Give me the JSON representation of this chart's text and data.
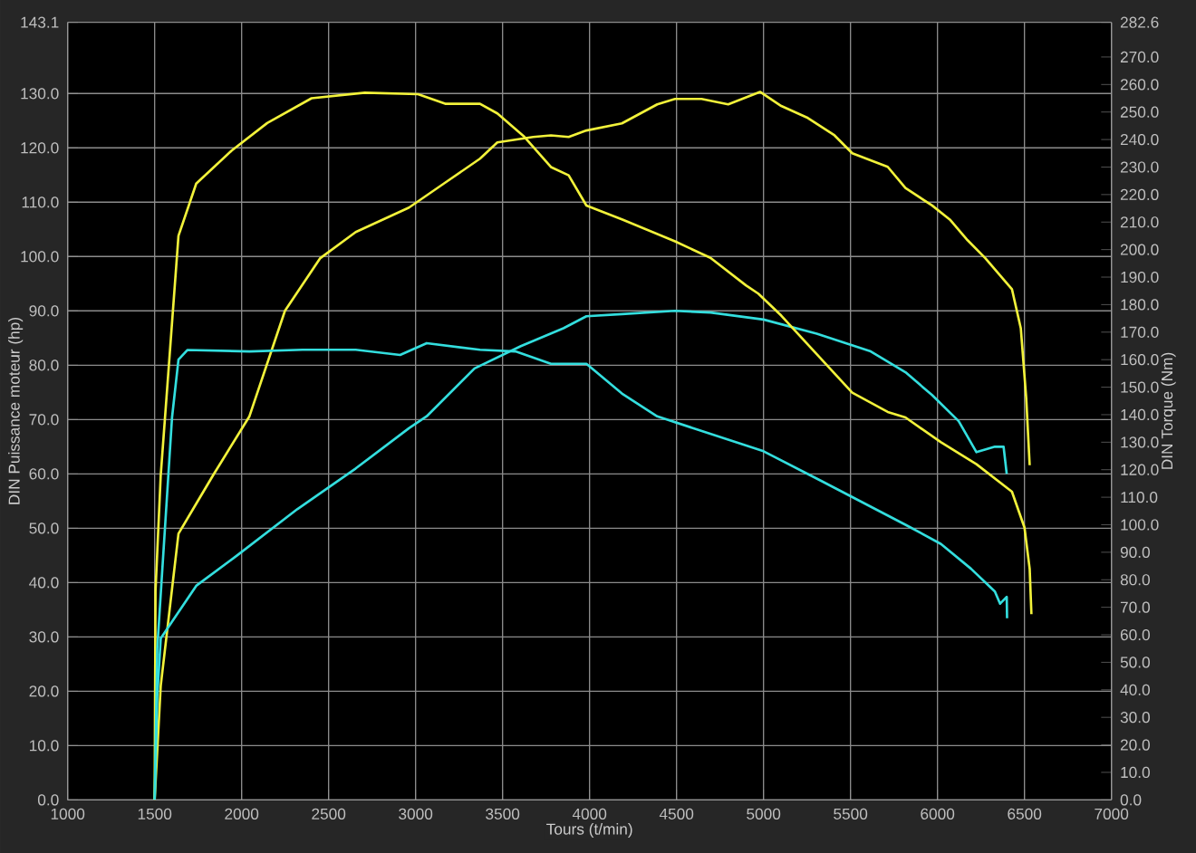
{
  "chart_data": {
    "type": "line",
    "xlabel": "Tours (t/min)",
    "ylabel": "DIN Puissance moteur (hp)",
    "y2label": "DIN Torque (Nm)",
    "xlim": [
      1000,
      7000
    ],
    "xticks": [
      1000,
      1500,
      2000,
      2500,
      3000,
      3500,
      4000,
      4500,
      5000,
      5500,
      6000,
      6500,
      7000
    ],
    "ylim": [
      0,
      143.1
    ],
    "yticks": [
      {
        "value": 0,
        "label": "0.0"
      },
      {
        "value": 10,
        "label": "10.0"
      },
      {
        "value": 20,
        "label": "20.0"
      },
      {
        "value": 30,
        "label": "30.0"
      },
      {
        "value": 40,
        "label": "40.0"
      },
      {
        "value": 50,
        "label": "50.0"
      },
      {
        "value": 60,
        "label": "60.0"
      },
      {
        "value": 70,
        "label": "70.0"
      },
      {
        "value": 80,
        "label": "80.0"
      },
      {
        "value": 90,
        "label": "90.0"
      },
      {
        "value": 100,
        "label": "100.0"
      },
      {
        "value": 110,
        "label": "110.0"
      },
      {
        "value": 120,
        "label": "120.0"
      },
      {
        "value": 130,
        "label": "130.0"
      },
      143.1
    ],
    "y2lim": [
      0,
      282.6
    ],
    "y2ticks": [
      {
        "value": 0,
        "label": "0.0"
      },
      {
        "value": 10,
        "label": "10.0"
      },
      {
        "value": 20,
        "label": "20.0"
      },
      {
        "value": 30,
        "label": "30.0"
      },
      {
        "value": 40,
        "label": "40.0"
      },
      {
        "value": 50,
        "label": "50.0"
      },
      {
        "value": 60,
        "label": "60.0"
      },
      {
        "value": 70,
        "label": "70.0"
      },
      {
        "value": 80,
        "label": "80.0"
      },
      {
        "value": 90,
        "label": "90.0"
      },
      {
        "value": 100,
        "label": "100.0"
      },
      {
        "value": 110,
        "label": "110.0"
      },
      {
        "value": 120,
        "label": "120.0"
      },
      {
        "value": 130,
        "label": "130.0"
      },
      {
        "value": 140,
        "label": "140.0"
      },
      {
        "value": 150,
        "label": "150.0"
      },
      {
        "value": 160,
        "label": "160.0"
      },
      {
        "value": 170,
        "label": "170.0"
      },
      {
        "value": 180,
        "label": "180.0"
      },
      {
        "value": 190,
        "label": "190.0"
      },
      {
        "value": 200,
        "label": "200.0"
      },
      {
        "value": 210,
        "label": "210.0"
      },
      {
        "value": 220,
        "label": "220.0"
      },
      {
        "value": 230,
        "label": "230.0"
      },
      {
        "value": 240,
        "label": "240.0"
      },
      {
        "value": 250,
        "label": "250.0"
      },
      {
        "value": 260,
        "label": "260.0"
      },
      {
        "value": 270,
        "label": "270.0"
      },
      282.6
    ],
    "grid": true,
    "series": [
      {
        "color": "#f2f23a",
        "x": [
          1500,
          1535,
          1637,
          1739,
          1841,
          2045,
          2249,
          2452,
          2656,
          2962,
          3166,
          3370,
          3470,
          3676,
          3778,
          3880,
          3982,
          4186,
          4389,
          4491,
          4644,
          4797,
          4980,
          5102,
          5255,
          5408,
          5510,
          5714,
          5816,
          5969,
          6071,
          6173,
          6275,
          6428,
          6479,
          6510,
          6530
        ],
        "values": [
          0,
          21,
          49,
          54.5,
          60,
          70.6,
          90,
          99.7,
          104.5,
          109,
          113.5,
          118,
          121,
          122,
          122.3,
          122,
          123.2,
          124.5,
          128,
          129,
          129,
          128,
          130.3,
          127.7,
          125.5,
          122.3,
          119,
          116.5,
          112.6,
          109.4,
          106.8,
          103,
          99.7,
          94,
          86.8,
          74,
          61.6
        ]
      },
      {
        "color": "#f2f23a",
        "axis": "y2",
        "x": [
          1500,
          1505,
          1535,
          1637,
          1739,
          1943,
          2147,
          2402,
          2708,
          3014,
          3170,
          3370,
          3470,
          3625,
          3778,
          3880,
          3982,
          4186,
          4491,
          4695,
          4899,
          4970,
          5102,
          5306,
          5510,
          5714,
          5816,
          6020,
          6224,
          6428,
          6500,
          6530,
          6540
        ],
        "values": [
          0,
          76,
          118,
          205,
          224,
          236,
          246,
          255,
          257,
          256.5,
          253,
          253,
          249.5,
          241,
          230,
          227,
          216,
          211,
          203,
          197,
          187,
          184,
          176,
          162,
          148,
          141,
          139,
          130,
          122,
          112,
          99,
          84,
          67.5
        ]
      },
      {
        "color": "#33dede",
        "x": [
          1500,
          1515,
          1535,
          1739,
          1974,
          2320,
          2656,
          2962,
          3064,
          3339,
          3605,
          3850,
          3982,
          4186,
          4491,
          4695,
          5000,
          5306,
          5612,
          5816,
          5969,
          6122,
          6224,
          6330,
          6380,
          6398
        ],
        "values": [
          0,
          19,
          29.7,
          39.4,
          45,
          53.5,
          61,
          68.4,
          70.6,
          79.4,
          83.5,
          86.8,
          89,
          89.4,
          90,
          89.7,
          88.4,
          85.8,
          82.6,
          78.7,
          74.5,
          69.7,
          64,
          65,
          65,
          60
        ]
      },
      {
        "color": "#33dede",
        "axis": "y2",
        "x": [
          1500,
          1515,
          1600,
          1637,
          1688,
          2045,
          2350,
          2656,
          2911,
          3064,
          3370,
          3574,
          3778,
          3982,
          4186,
          4389,
          5000,
          5336,
          5816,
          6020,
          6193,
          6330,
          6360,
          6398,
          6400
        ],
        "values": [
          0,
          55,
          139,
          160,
          163.5,
          163,
          163.6,
          163.6,
          161.7,
          166,
          163.6,
          163,
          158.5,
          158.5,
          147.7,
          139.4,
          126.7,
          115.8,
          100,
          93,
          84,
          75.7,
          71.3,
          73.8,
          66
        ]
      }
    ]
  }
}
